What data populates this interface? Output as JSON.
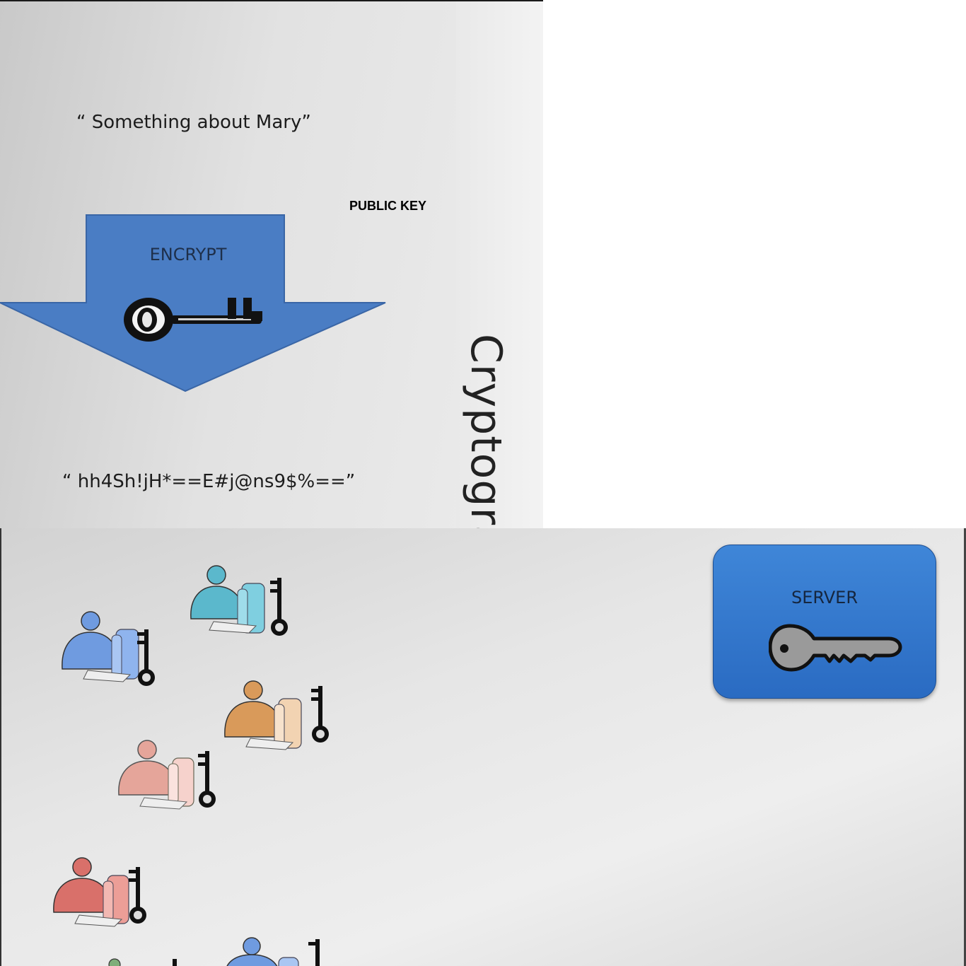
{
  "slide_title": "Cryptography",
  "plaintext": "“ Something about Mary”",
  "ciphertext": "“ hh4Sh!jH*==E#j@ns9$%==”",
  "public_key_label": "PUBLIC KEY",
  "encrypt_label": "ENCRYPT",
  "server_label": "SERVER",
  "colors": {
    "arrow": "#4a7dc4",
    "server": "#3a7fd4",
    "user_blue": "#6f9be0",
    "user_teal": "#5bb8cc",
    "user_orange": "#d99a5a",
    "user_pink": "#e5a59a",
    "user_red": "#d9706a",
    "server_key": "#9a9a9a"
  },
  "icons": [
    "key-icon",
    "person-at-computer-icon",
    "server-key-icon"
  ]
}
